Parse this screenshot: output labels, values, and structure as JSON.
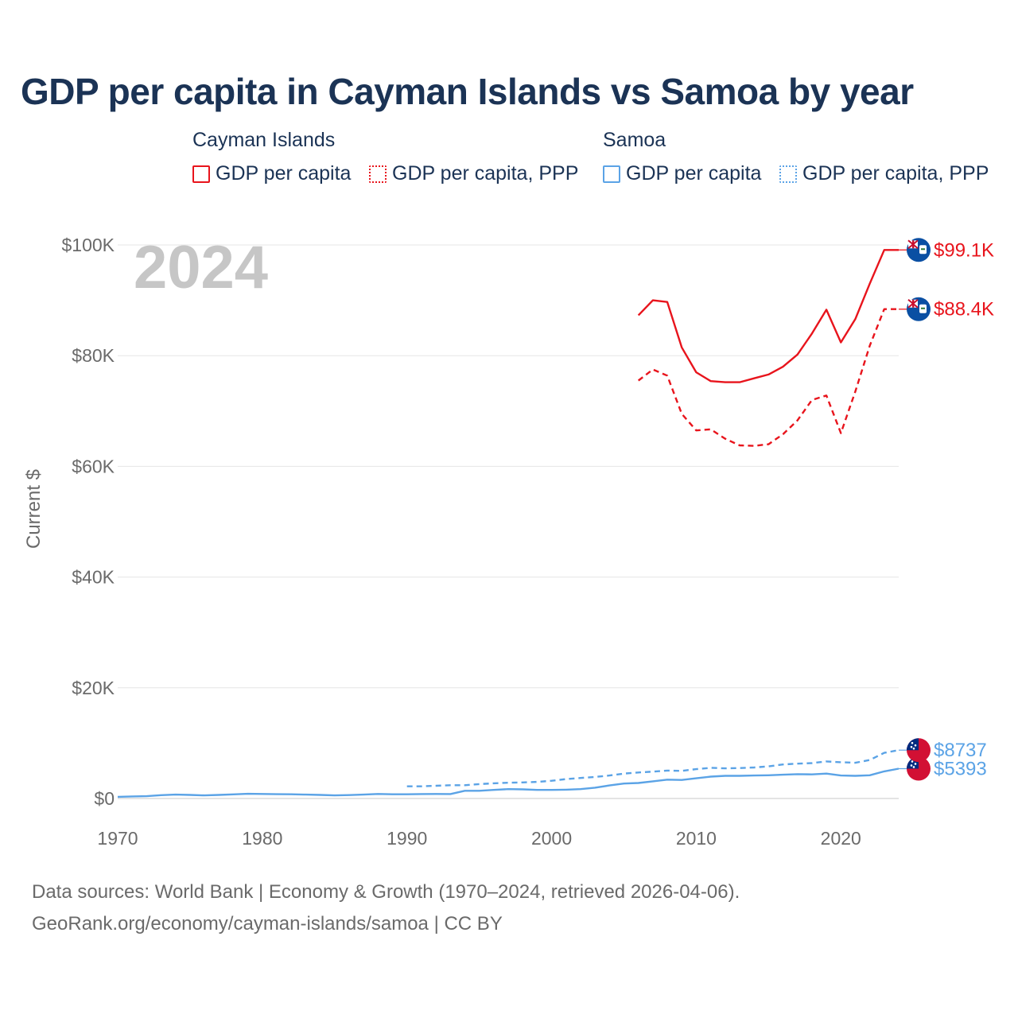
{
  "chart_data": {
    "type": "line",
    "title": "GDP per capita in Cayman Islands vs Samoa by year",
    "ylabel": "Current $",
    "xlabel": "",
    "year_label": "2024",
    "xlim": [
      1970,
      2024
    ],
    "ylim": [
      0,
      100000
    ],
    "x_ticks": [
      1970,
      1980,
      1990,
      2000,
      2010,
      2020
    ],
    "x_tick_labels": [
      "1970",
      "1980",
      "1990",
      "2000",
      "2010",
      "2020"
    ],
    "y_ticks": [
      0,
      20000,
      40000,
      60000,
      80000,
      100000
    ],
    "y_tick_labels": [
      "$0",
      "$20K",
      "$40K",
      "$60K",
      "$80K",
      "$100K"
    ],
    "legend_groups": [
      {
        "name": "Cayman Islands",
        "color": "#e8141c",
        "items": [
          {
            "label": "GDP per capita",
            "style": "solid"
          },
          {
            "label": "GDP per capita, PPP",
            "style": "dotted"
          }
        ]
      },
      {
        "name": "Samoa",
        "color": "#5ba3e6",
        "items": [
          {
            "label": "GDP per capita",
            "style": "solid"
          },
          {
            "label": "GDP per capita, PPP",
            "style": "dotted"
          }
        ]
      }
    ],
    "series": [
      {
        "name": "Cayman Islands GDP per capita",
        "country": "Cayman Islands",
        "color": "#e8141c",
        "dash": false,
        "end_label": "$99.1K",
        "x": [
          2006,
          2007,
          2008,
          2009,
          2010,
          2011,
          2012,
          2013,
          2014,
          2015,
          2016,
          2017,
          2018,
          2019,
          2020,
          2021,
          2022,
          2023,
          2024
        ],
        "values": [
          87300,
          90000,
          89700,
          81500,
          77000,
          75400,
          75200,
          75200,
          75900,
          76600,
          78000,
          80200,
          84000,
          88300,
          82400,
          86600,
          93000,
          99100,
          99100
        ]
      },
      {
        "name": "Cayman Islands GDP per capita, PPP",
        "country": "Cayman Islands",
        "color": "#e8141c",
        "dash": true,
        "end_label": "$88.4K",
        "x": [
          2006,
          2007,
          2008,
          2009,
          2010,
          2011,
          2012,
          2013,
          2014,
          2015,
          2016,
          2017,
          2018,
          2019,
          2020,
          2021,
          2022,
          2023,
          2024
        ],
        "values": [
          75500,
          77500,
          76400,
          69500,
          66500,
          66700,
          65000,
          63800,
          63700,
          64000,
          65800,
          68300,
          72000,
          72800,
          66000,
          73500,
          81800,
          88400,
          88400
        ]
      },
      {
        "name": "Samoa GDP per capita",
        "country": "Samoa",
        "color": "#5ba3e6",
        "dash": false,
        "end_label": "$5393",
        "x": [
          1970,
          1971,
          1972,
          1973,
          1974,
          1975,
          1976,
          1977,
          1978,
          1979,
          1980,
          1981,
          1982,
          1983,
          1984,
          1985,
          1986,
          1987,
          1988,
          1989,
          1990,
          1991,
          1992,
          1993,
          1994,
          1995,
          1996,
          1997,
          1998,
          1999,
          2000,
          2001,
          2002,
          2003,
          2004,
          2005,
          2006,
          2007,
          2008,
          2009,
          2010,
          2011,
          2012,
          2013,
          2014,
          2015,
          2016,
          2017,
          2018,
          2019,
          2020,
          2021,
          2022,
          2023,
          2024
        ],
        "values": [
          300,
          380,
          420,
          600,
          700,
          650,
          560,
          650,
          750,
          850,
          820,
          780,
          760,
          700,
          640,
          560,
          620,
          700,
          820,
          760,
          760,
          800,
          820,
          800,
          1400,
          1400,
          1550,
          1700,
          1650,
          1550,
          1550,
          1600,
          1700,
          1950,
          2350,
          2700,
          2800,
          3100,
          3400,
          3350,
          3650,
          3950,
          4100,
          4100,
          4150,
          4200,
          4300,
          4400,
          4350,
          4500,
          4150,
          4100,
          4200,
          4900,
          5393
        ]
      },
      {
        "name": "Samoa GDP per capita, PPP",
        "country": "Samoa",
        "color": "#5ba3e6",
        "dash": true,
        "end_label": "$8737",
        "x": [
          1990,
          1991,
          1992,
          1993,
          1994,
          1995,
          1996,
          1997,
          1998,
          1999,
          2000,
          2001,
          2002,
          2003,
          2004,
          2005,
          2006,
          2007,
          2008,
          2009,
          2010,
          2011,
          2012,
          2013,
          2014,
          2015,
          2016,
          2017,
          2018,
          2019,
          2020,
          2021,
          2022,
          2023,
          2024
        ],
        "values": [
          2200,
          2200,
          2300,
          2400,
          2400,
          2600,
          2750,
          2850,
          2900,
          3000,
          3200,
          3500,
          3700,
          3900,
          4150,
          4500,
          4700,
          4850,
          5050,
          5000,
          5300,
          5550,
          5450,
          5500,
          5600,
          5800,
          6150,
          6300,
          6400,
          6700,
          6550,
          6450,
          6950,
          8250,
          8737
        ]
      }
    ]
  },
  "footer": {
    "line1": "Data sources: World Bank | Economy & Growth (1970–2024, retrieved 2026-04-06).",
    "line2": "GeoRank.org/economy/cayman-islands/samoa | CC BY"
  }
}
